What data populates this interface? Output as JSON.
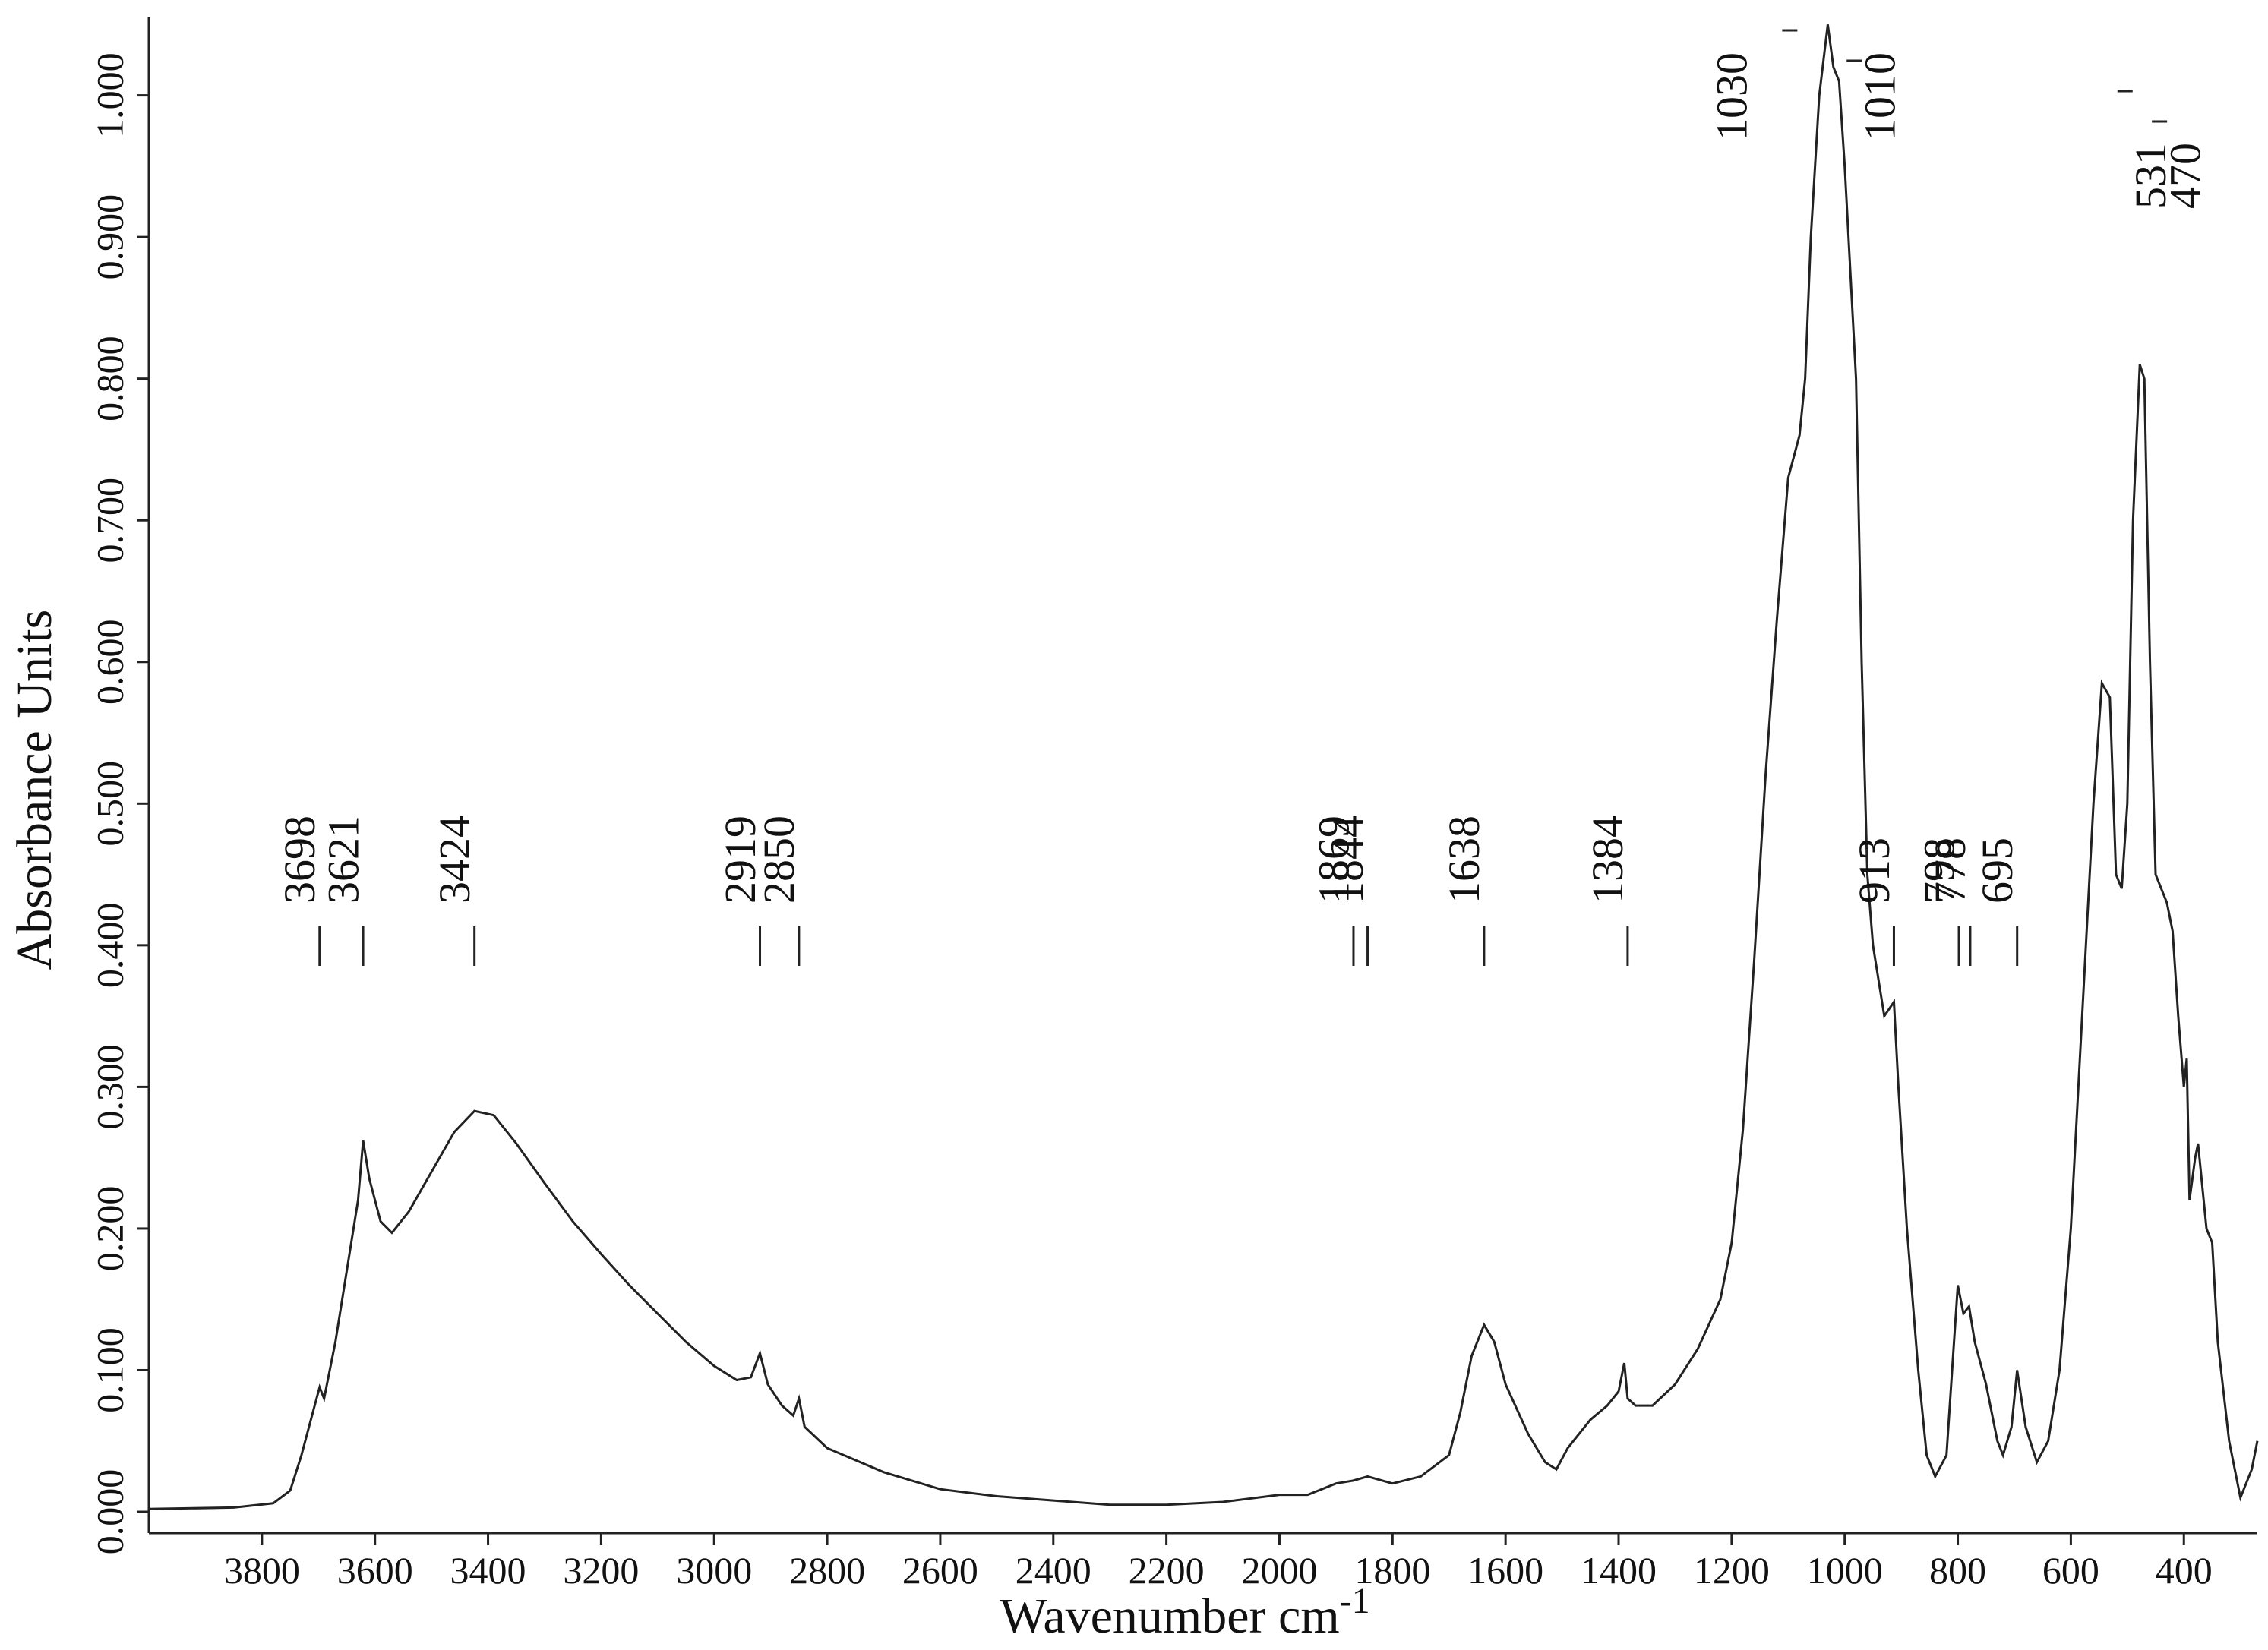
{
  "chart_data": {
    "type": "line",
    "ylabel": "Absorbance Units",
    "xlabel": "Wavenumber cm",
    "xlabel_sup": "-1",
    "color": "#222222",
    "xlim": [
      4000,
      270
    ],
    "ylim": [
      -0.015,
      1.055
    ],
    "xticks": [
      3800,
      3600,
      3400,
      3200,
      3000,
      2800,
      2600,
      2400,
      2200,
      2000,
      1800,
      1600,
      1400,
      1200,
      1000,
      800,
      600,
      400
    ],
    "yticks": [
      {
        "value": 0,
        "label": "0.000"
      },
      {
        "value": 0.1,
        "label": "0.100"
      },
      {
        "value": 0.2,
        "label": "0.200"
      },
      {
        "value": 0.3,
        "label": "0.300"
      },
      {
        "value": 0.4,
        "label": "0.400"
      },
      {
        "value": 0.5,
        "label": "0.500"
      },
      {
        "value": 0.6,
        "label": "0.600"
      },
      {
        "value": 0.7,
        "label": "0.700"
      },
      {
        "value": 0.8,
        "label": "0.800"
      },
      {
        "value": 0.9,
        "label": "0.900"
      },
      {
        "value": 1,
        "label": "1.000"
      }
    ],
    "x": [
      4000,
      3850,
      3780,
      3750,
      3730,
      3710,
      3698,
      3690,
      3670,
      3650,
      3630,
      3621,
      3610,
      3590,
      3570,
      3540,
      3500,
      3460,
      3424,
      3390,
      3350,
      3300,
      3250,
      3200,
      3150,
      3100,
      3050,
      3000,
      2960,
      2935,
      2919,
      2905,
      2880,
      2860,
      2850,
      2840,
      2800,
      2700,
      2600,
      2500,
      2400,
      2300,
      2200,
      2100,
      2000,
      1950,
      1900,
      1870,
      1844,
      1800,
      1750,
      1700,
      1680,
      1660,
      1638,
      1620,
      1600,
      1560,
      1530,
      1510,
      1490,
      1450,
      1420,
      1400,
      1390,
      1384,
      1370,
      1340,
      1300,
      1260,
      1220,
      1200,
      1180,
      1160,
      1140,
      1120,
      1100,
      1080,
      1070,
      1060,
      1045,
      1030,
      1020,
      1010,
      1000,
      980,
      970,
      960,
      950,
      930,
      913,
      905,
      890,
      870,
      855,
      840,
      820,
      810,
      800,
      790,
      780,
      770,
      750,
      730,
      720,
      705,
      695,
      680,
      660,
      640,
      620,
      600,
      580,
      560,
      545,
      531,
      520,
      510,
      500,
      490,
      478,
      470,
      460,
      450,
      430,
      420,
      410,
      400,
      395,
      390,
      380,
      375,
      360,
      350,
      340,
      320,
      300,
      280,
      270
    ],
    "values": [
      0.002,
      0.003,
      0.006,
      0.015,
      0.04,
      0.07,
      0.088,
      0.08,
      0.12,
      0.17,
      0.22,
      0.262,
      0.235,
      0.205,
      0.197,
      0.212,
      0.24,
      0.268,
      0.283,
      0.28,
      0.26,
      0.232,
      0.205,
      0.182,
      0.16,
      0.14,
      0.12,
      0.103,
      0.093,
      0.095,
      0.112,
      0.09,
      0.075,
      0.068,
      0.08,
      0.06,
      0.045,
      0.028,
      0.016,
      0.011,
      0.008,
      0.005,
      0.005,
      0.007,
      0.012,
      0.012,
      0.02,
      0.022,
      0.025,
      0.02,
      0.025,
      0.04,
      0.07,
      0.11,
      0.132,
      0.12,
      0.09,
      0.055,
      0.035,
      0.03,
      0.045,
      0.065,
      0.075,
      0.085,
      0.105,
      0.08,
      0.075,
      0.075,
      0.09,
      0.115,
      0.15,
      0.19,
      0.27,
      0.39,
      0.52,
      0.63,
      0.73,
      0.76,
      0.8,
      0.9,
      1.0,
      1.05,
      1.02,
      1.01,
      0.95,
      0.8,
      0.6,
      0.45,
      0.4,
      0.35,
      0.36,
      0.3,
      0.2,
      0.1,
      0.04,
      0.025,
      0.04,
      0.1,
      0.16,
      0.14,
      0.145,
      0.12,
      0.09,
      0.05,
      0.04,
      0.06,
      0.1,
      0.06,
      0.035,
      0.05,
      0.1,
      0.2,
      0.35,
      0.5,
      0.585,
      0.575,
      0.45,
      0.44,
      0.5,
      0.7,
      0.81,
      0.8,
      0.6,
      0.45,
      0.43,
      0.41,
      0.35,
      0.3,
      0.32,
      0.22,
      0.25,
      0.26,
      0.2,
      0.19,
      0.12,
      0.05,
      0.01,
      0.03,
      0.05
    ],
    "peak_labels": [
      3698,
      3621,
      3424,
      2919,
      2850,
      1869,
      1844,
      1638,
      1384,
      913,
      798,
      778,
      695
    ],
    "peak_labels_top": [
      1030,
      1010,
      531,
      470
    ]
  }
}
